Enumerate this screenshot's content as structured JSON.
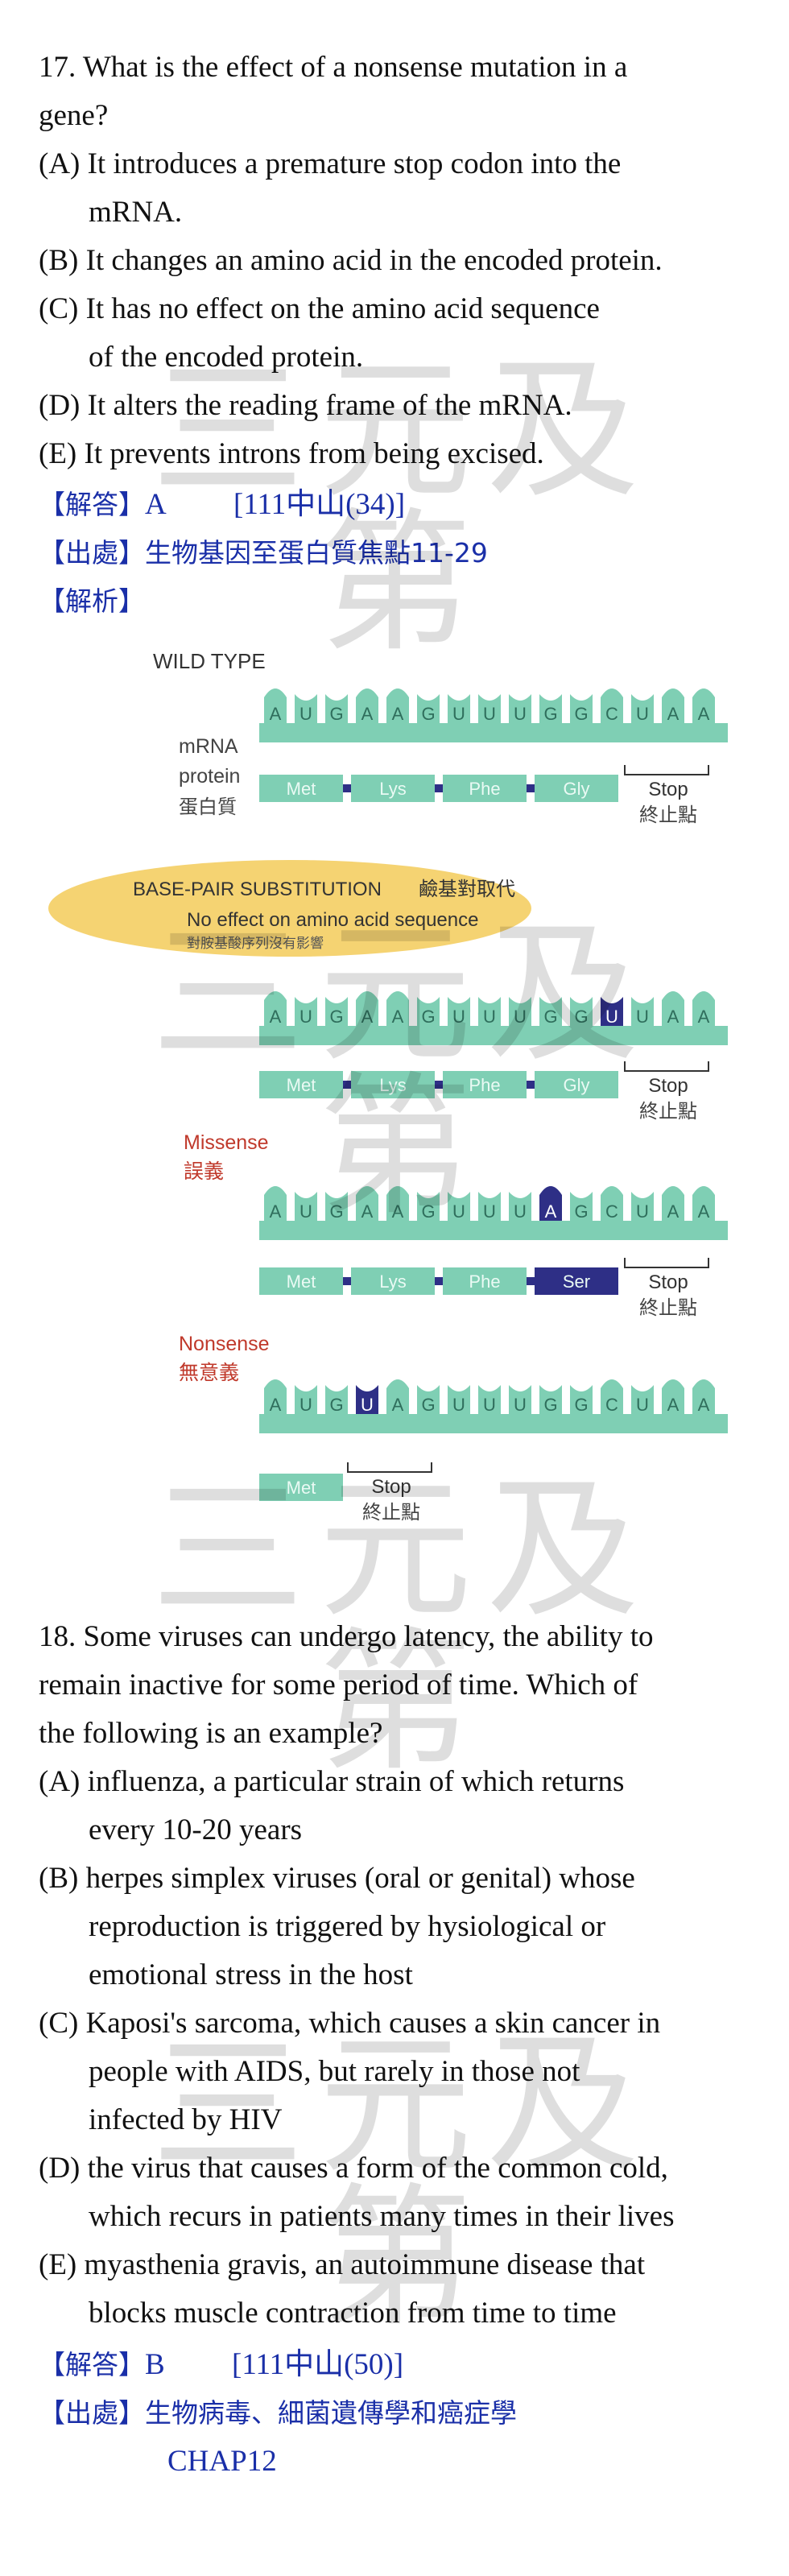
{
  "watermark": "三元及第",
  "q17": {
    "lines": [
      "17. What is the effect of a nonsense mutation in a",
      "gene?",
      "(A) It introduces a premature stop codon into the",
      "mRNA.",
      "(B) It changes an amino acid in the encoded protein.",
      "(C) It has no effect on the amino acid sequence",
      "of the encoded protein.",
      "(D) It alters the reading frame of the mRNA.",
      "(E) It prevents introns from being excised."
    ],
    "answer_tag": "【解答】",
    "answer": "A",
    "answer_ref": "[111中山(34)]",
    "source_tag": "【出處】",
    "source": "生物基因至蛋白質焦點11-29",
    "analysis_tag": "【解析】"
  },
  "figure": {
    "wild_type": "WILD TYPE",
    "mrna_label": "mRNA",
    "protein_label": "protein",
    "protein_label_zh": "蛋白質",
    "codons": [
      "A",
      "U",
      "G",
      "A",
      "A",
      "G",
      "U",
      "U",
      "U",
      "G",
      "G",
      "C",
      "U",
      "A",
      "A"
    ],
    "stop": "Stop",
    "stop_zh": "終止點",
    "aa_wild": [
      "Met",
      "Lys",
      "Phe",
      "Gly"
    ],
    "substitution_title": "BASE-PAIR SUBSTITUTION",
    "substitution_title_zh": "鹼基對取代",
    "no_effect": "No effect on amino acid sequence",
    "no_effect_zh": "對胺基酸序列沒有影響",
    "silent_codons": [
      "A",
      "U",
      "G",
      "A",
      "A",
      "G",
      "U",
      "U",
      "U",
      "G",
      "G",
      "U",
      "U",
      "A",
      "A"
    ],
    "missense": "Missense",
    "missense_zh": "誤義",
    "missense_codons": [
      "A",
      "U",
      "G",
      "A",
      "A",
      "G",
      "U",
      "U",
      "U",
      "A",
      "G",
      "C",
      "U",
      "A",
      "A"
    ],
    "aa_missense": [
      "Met",
      "Lys",
      "Phe",
      "Ser"
    ],
    "nonsense": "Nonsense",
    "nonsense_zh": "無意義",
    "nonsense_codons": [
      "A",
      "U",
      "G",
      "U",
      "A",
      "G",
      "U",
      "U",
      "U",
      "G",
      "G",
      "C",
      "U",
      "A",
      "A"
    ],
    "aa_nonsense": [
      "Met"
    ]
  },
  "q18": {
    "lines": [
      "18. Some viruses can undergo latency, the ability to",
      "remain inactive for some period of time. Which of",
      "the following is an example?",
      "(A) influenza, a particular strain of which returns",
      "every 10-20 years",
      "(B) herpes simplex viruses (oral or genital) whose",
      "reproduction is triggered by hysiological or",
      "emotional stress in the host",
      "(C) Kaposi's sarcoma, which causes a skin cancer in",
      "people with AIDS, but rarely in those not",
      "infected by HIV",
      "(D) the virus that causes a form of the common cold,",
      "which recurs in patients many times in their lives",
      "(E) myasthenia gravis, an autoimmune disease that",
      "blocks muscle contraction from time to time"
    ],
    "answer_tag": "【解答】",
    "answer": "B",
    "answer_ref": "[111中山(50)]",
    "source_tag": "【出處】",
    "source": "生物病毒、細菌遺傳學和癌症學",
    "source_2": "CHAP12"
  },
  "colors": {
    "teal": "#7fcfb4",
    "teal_text": "#3a8f78",
    "highlight": "#2e2f86",
    "blue": "#1a2fa8",
    "red": "#c0392b",
    "oval": "#f5d372"
  }
}
